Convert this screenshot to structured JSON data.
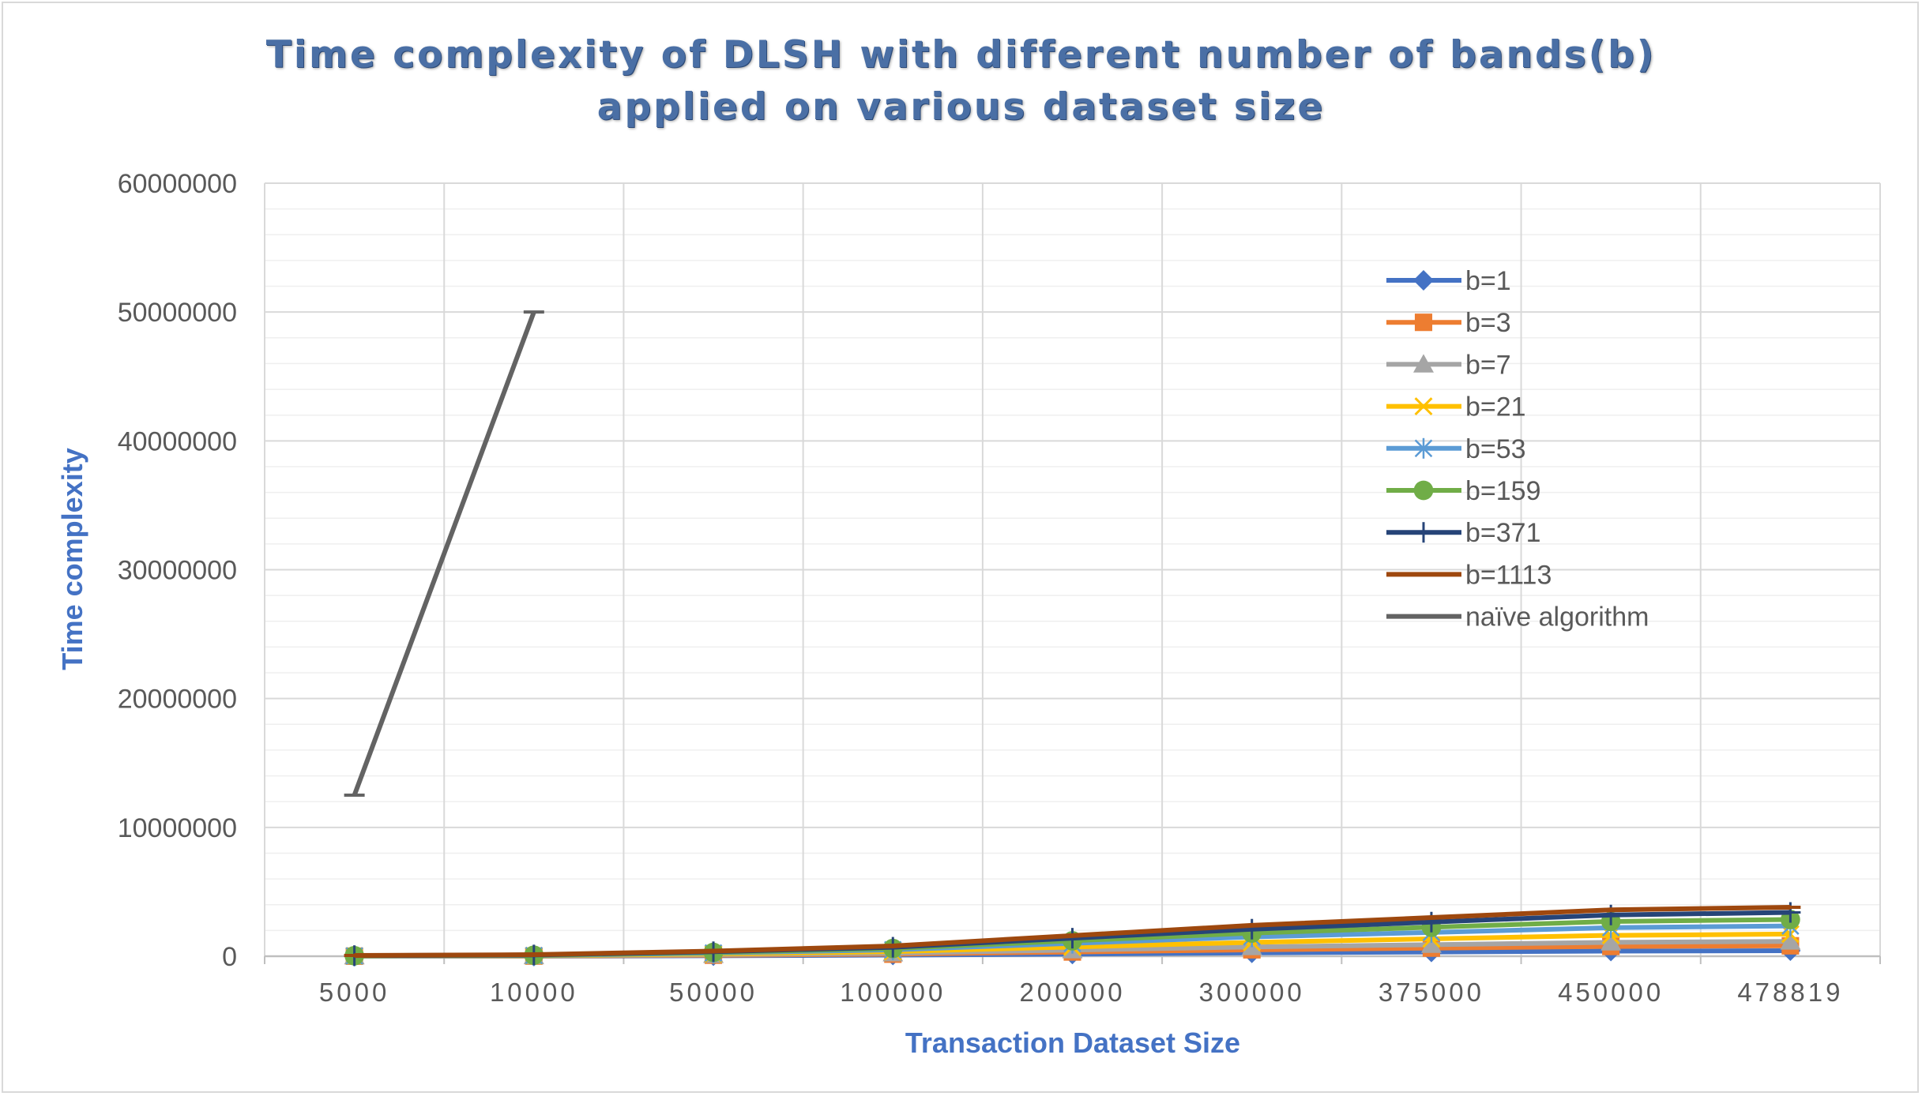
{
  "chart_data": {
    "type": "line",
    "title_lines": [
      "Time complexity of DLSH with different number of bands(b)",
      "applied on various  dataset size"
    ],
    "xlabel": "Transaction Dataset Size",
    "ylabel": "Time complexity",
    "categories": [
      "5000",
      "10000",
      "50000",
      "100000",
      "200000",
      "300000",
      "375000",
      "450000",
      "478819"
    ],
    "ylim": [
      0,
      60000000
    ],
    "yticks": [
      "0",
      "10000000",
      "20000000",
      "30000000",
      "40000000",
      "50000000",
      "60000000"
    ],
    "grid": true,
    "legend_position": "right, inside plot",
    "series": [
      {
        "name": "b=1",
        "color": "#4472c4",
        "marker": "diamond",
        "values": [
          2000,
          5000,
          40000,
          90000,
          170000,
          260000,
          330000,
          400000,
          430000
        ]
      },
      {
        "name": "b=3",
        "color": "#ed7d31",
        "marker": "square",
        "values": [
          5000,
          12000,
          80000,
          160000,
          330000,
          500000,
          630000,
          760000,
          810000
        ]
      },
      {
        "name": "b=7",
        "color": "#a5a5a5",
        "marker": "triangle",
        "values": [
          8000,
          20000,
          120000,
          240000,
          480000,
          720000,
          900000,
          1080000,
          1150000
        ]
      },
      {
        "name": "b=21",
        "color": "#ffc000",
        "marker": "x",
        "values": [
          15000,
          35000,
          180000,
          360000,
          720000,
          1080000,
          1350000,
          1620000,
          1720000
        ]
      },
      {
        "name": "b=53",
        "color": "#5b9bd5",
        "marker": "asterisk",
        "values": [
          25000,
          55000,
          250000,
          500000,
          1000000,
          1500000,
          1850000,
          2220000,
          2350000
        ]
      },
      {
        "name": "b=159",
        "color": "#70ad47",
        "marker": "circle",
        "values": [
          40000,
          80000,
          300000,
          600000,
          1200000,
          1800000,
          2250000,
          2700000,
          2850000
        ]
      },
      {
        "name": "b=371",
        "color": "#264478",
        "marker": "plus",
        "values": [
          50000,
          100000,
          350000,
          700000,
          1400000,
          2100000,
          2650000,
          3200000,
          3400000
        ]
      },
      {
        "name": "b=1113",
        "color": "#9e480e",
        "marker": "dash",
        "values": [
          60000,
          120000,
          400000,
          800000,
          1600000,
          2400000,
          3000000,
          3600000,
          3800000
        ]
      },
      {
        "name": "naïve algorithm",
        "color": "#636363",
        "marker": "dash",
        "values": [
          12500000,
          50000000,
          null,
          null,
          null,
          null,
          null,
          null,
          null
        ]
      }
    ]
  }
}
